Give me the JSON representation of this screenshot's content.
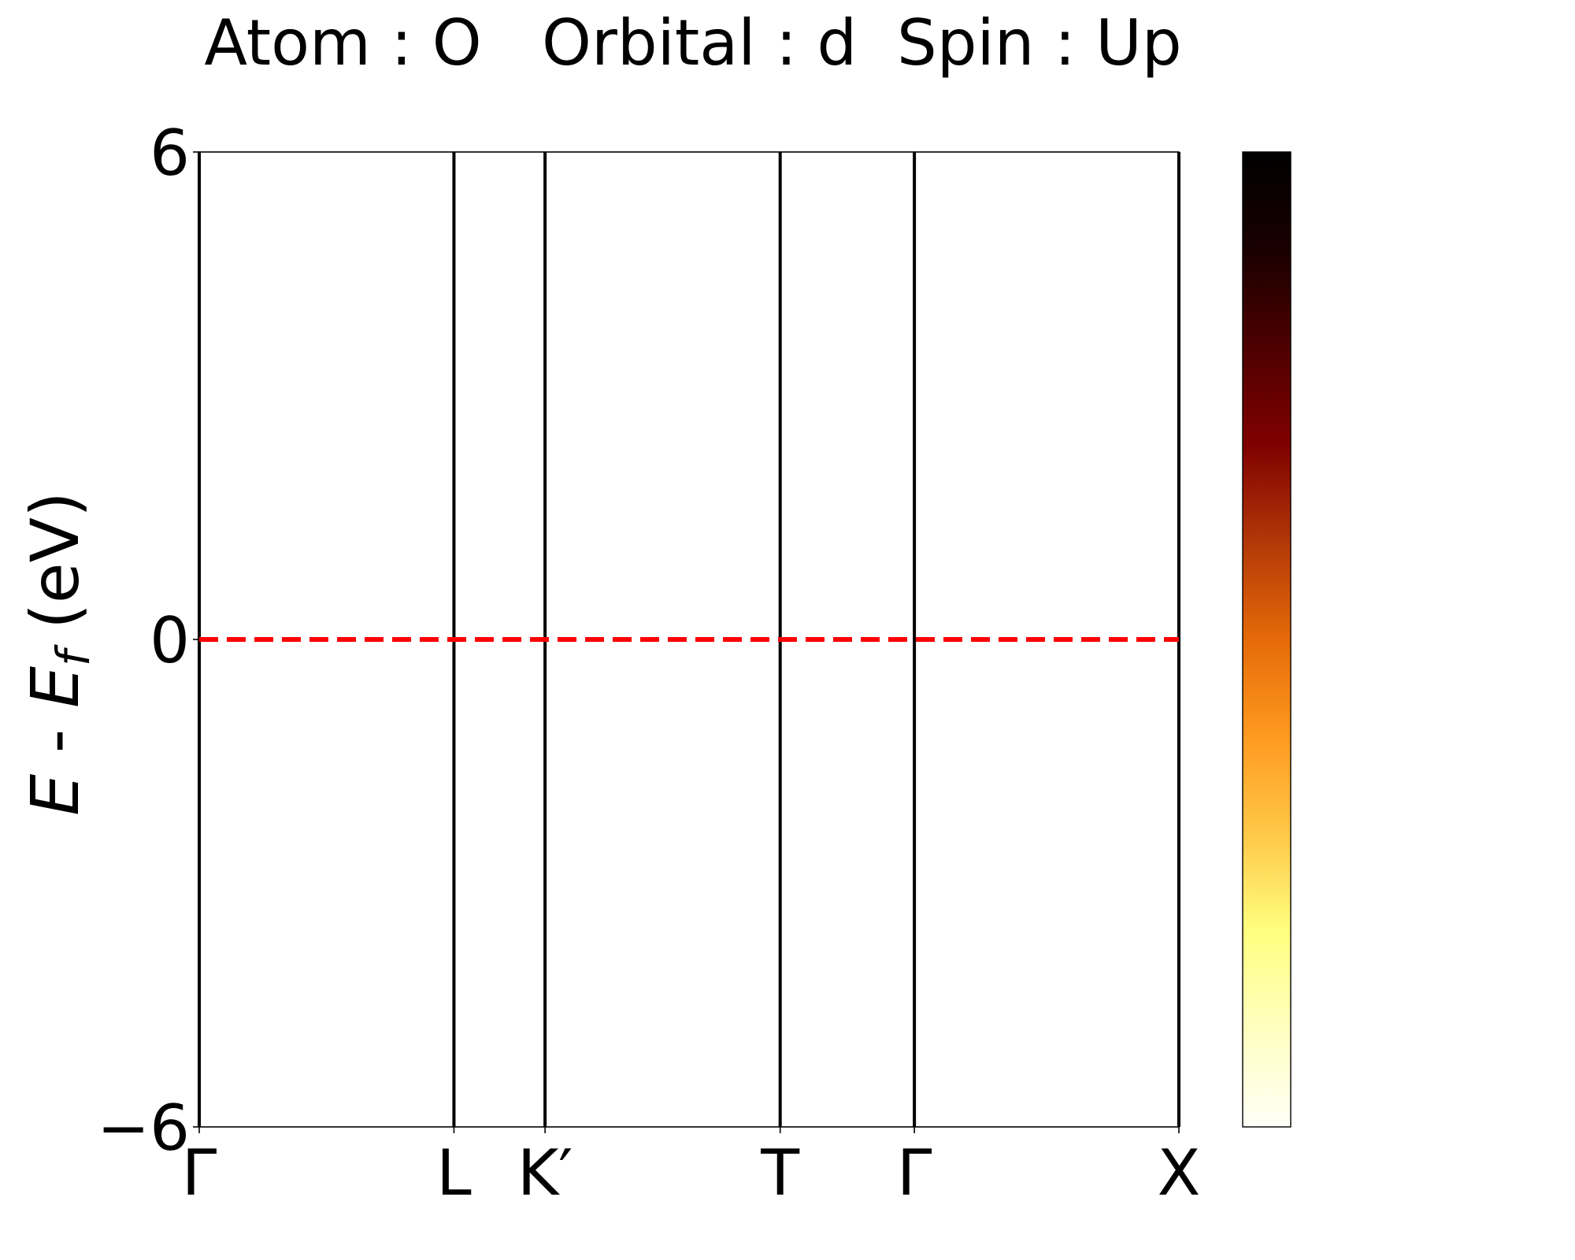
{
  "title": "Atom : O   Orbital : d  Spin : Up",
  "chart_data": {
    "type": "line",
    "title": "Atom : O   Orbital : d  Spin : Up",
    "ylabel": {
      "prefix": "E",
      "sep": " - ",
      "sub_base": "E",
      "sub": "f",
      "suffix": "  (eV)"
    },
    "ylim": [
      -6,
      6
    ],
    "yticks": [
      {
        "value": 6,
        "label": "6"
      },
      {
        "value": 0,
        "label": "0"
      },
      {
        "value": -6,
        "label": "−6"
      }
    ],
    "kpath": {
      "range": [
        0,
        100
      ],
      "points": [
        {
          "label": "Γ",
          "pos": 0
        },
        {
          "label": "L",
          "pos": 26
        },
        {
          "label": "K′",
          "pos": 35.3
        },
        {
          "label": "T",
          "pos": 59.3
        },
        {
          "label": "Γ",
          "pos": 73
        },
        {
          "label": "X",
          "pos": 100
        }
      ]
    },
    "fermi_level": {
      "value": 0,
      "color": "#ff0000",
      "style": "dashed"
    },
    "bands": [],
    "colorbar": {
      "colormap": "afmhot_r",
      "stops": [
        "#fffff8",
        "#ffffc0",
        "#ffff80",
        "#ffc848",
        "#ff9a20",
        "#e56a08",
        "#b23808",
        "#800000",
        "#4d0000",
        "#1a0000",
        "#000000"
      ],
      "ticks": []
    },
    "grid": false
  }
}
